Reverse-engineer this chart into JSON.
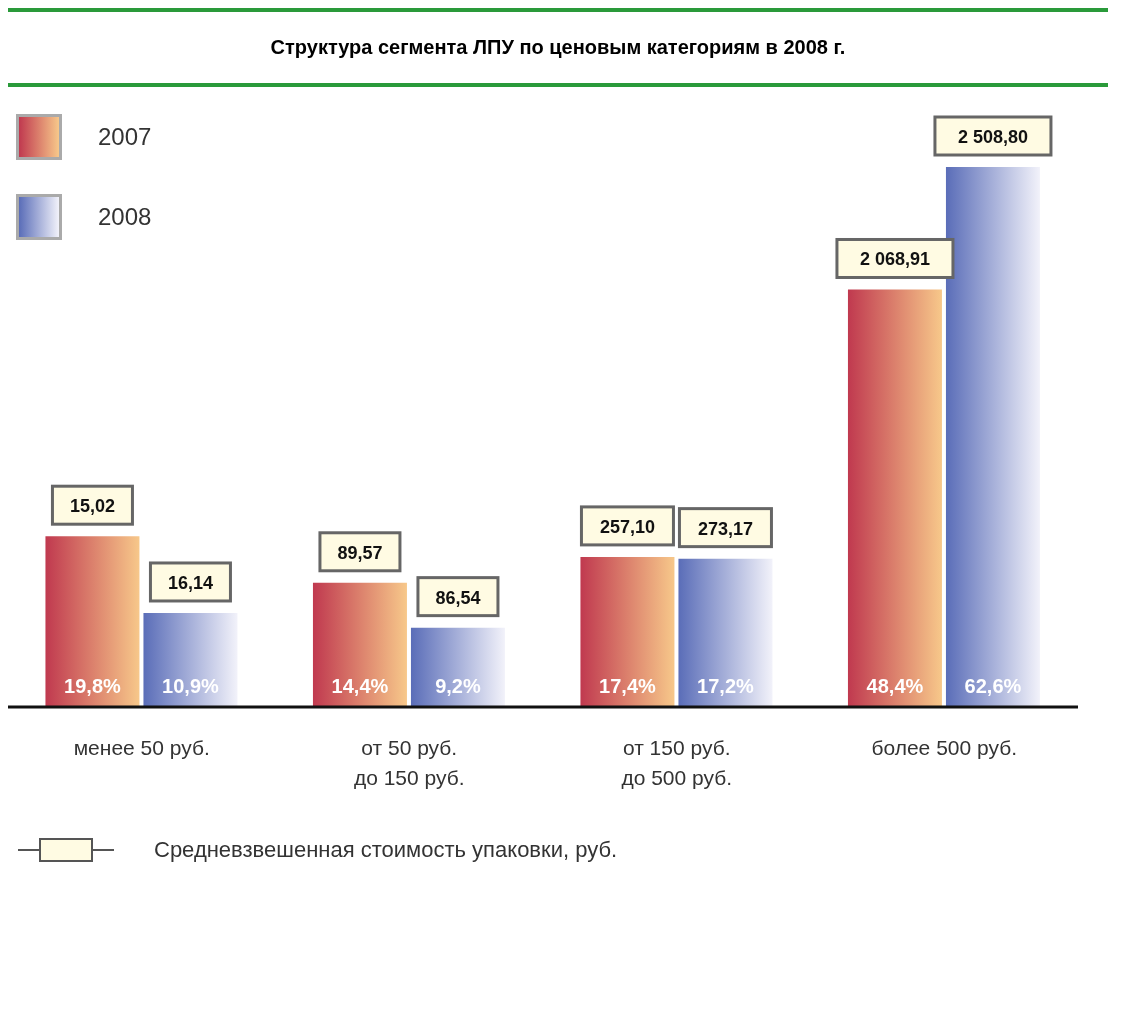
{
  "chart_data": {
    "type": "bar",
    "title": "Структура сегмента ЛПУ по ценовым категориям в 2008 г.",
    "categories": [
      "менее 50 руб.",
      "от 50 руб.\nдо 150 руб.",
      "от 150 руб.\nдо 500 руб.",
      "более 500 руб."
    ],
    "series": [
      {
        "name": "2007",
        "color": "#c0394f",
        "values": [
          19.8,
          14.4,
          17.4,
          48.4
        ],
        "value_labels": [
          "19,8%",
          "14,4%",
          "17,4%",
          "48,4%"
        ]
      },
      {
        "name": "2008",
        "color": "#5a6db8",
        "values": [
          10.9,
          9.2,
          17.2,
          62.6
        ],
        "value_labels": [
          "10,9%",
          "9,2%",
          "17,2%",
          "62,6%"
        ]
      }
    ],
    "tick_labels": "x",
    "legend": "top left",
    "annotations": [
      "15,02",
      "16,14",
      "89,57",
      "86,54",
      "257,10",
      "273,17",
      "2 068,91",
      "2 508,80",
      "Средневзвешенная стоимость упаковки, руб."
    ]
  }
}
